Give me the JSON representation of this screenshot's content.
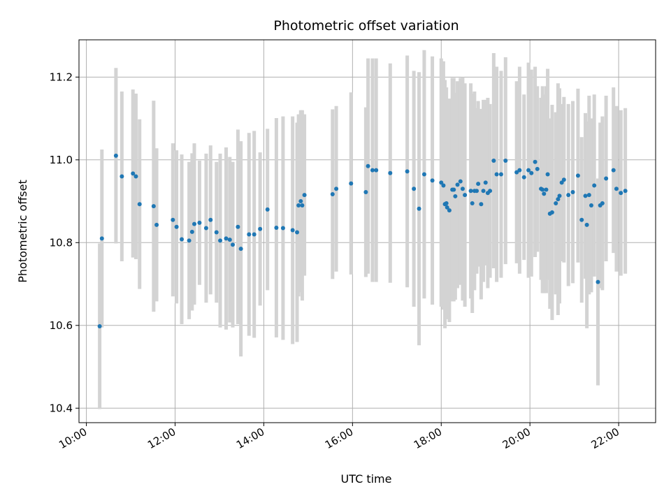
{
  "chart_data": {
    "type": "scatter",
    "title": "Photometric offset variation",
    "xlabel": "UTC time",
    "ylabel": "Photometric offset",
    "x_ticks": [
      "10:00",
      "12:00",
      "14:00",
      "16:00",
      "18:00",
      "20:00",
      "22:00"
    ],
    "y_ticks": [
      "10.4",
      "10.6",
      "10.8",
      "11.0",
      "11.2"
    ],
    "xlim": [
      "09:50",
      "22:50"
    ],
    "ylim": [
      10.365,
      11.29
    ],
    "grid": true,
    "colors": {
      "points": "#1f77b4",
      "errorbars": "#d3d3d3",
      "grid": "#b0b0b0"
    },
    "series": [
      {
        "x": [
          "10:18",
          "10:21",
          "10:40",
          "10:48",
          "11:03",
          "11:07",
          "11:12",
          "11:31",
          "11:35",
          "11:57",
          "12:02",
          "12:09",
          "12:19",
          "12:23",
          "12:26",
          "12:33",
          "12:42",
          "12:48",
          "12:56",
          "13:01",
          "13:09",
          "13:14",
          "13:18",
          "13:25",
          "13:29",
          "13:40",
          "13:47",
          "13:55",
          "14:05",
          "14:17",
          "14:26",
          "14:39",
          "14:45",
          "14:47",
          "14:50",
          "14:52",
          "14:55",
          "15:33",
          "15:38",
          "15:58",
          "16:18",
          "16:21",
          "16:27",
          "16:32",
          "16:51",
          "17:14",
          "17:23",
          "17:30",
          "17:37",
          "17:48",
          "18:00",
          "18:03",
          "18:05",
          "18:07",
          "18:08",
          "18:11",
          "18:15",
          "18:17",
          "18:19",
          "18:22",
          "18:26",
          "18:29",
          "18:32",
          "18:40",
          "18:42",
          "18:45",
          "18:48",
          "18:50",
          "18:54",
          "18:57",
          "19:00",
          "19:03",
          "19:06",
          "19:11",
          "19:15",
          "19:21",
          "19:27",
          "19:42",
          "19:46",
          "19:52",
          "19:58",
          "20:02",
          "20:07",
          "20:10",
          "20:15",
          "20:17",
          "20:19",
          "20:22",
          "20:24",
          "20:27",
          "20:30",
          "20:35",
          "20:38",
          "20:40",
          "20:43",
          "20:46",
          "20:52",
          "20:58",
          "21:05",
          "21:10",
          "21:15",
          "21:17",
          "21:20",
          "21:23",
          "21:27",
          "21:32",
          "21:35",
          "21:38",
          "21:43",
          "21:53",
          "21:57",
          "22:03",
          "22:09"
        ],
        "y": [
          10.598,
          10.81,
          11.01,
          10.96,
          10.967,
          10.96,
          10.893,
          10.888,
          10.843,
          10.855,
          10.838,
          10.808,
          10.805,
          10.826,
          10.845,
          10.848,
          10.835,
          10.855,
          10.825,
          10.805,
          10.81,
          10.807,
          10.795,
          10.838,
          10.785,
          10.82,
          10.82,
          10.833,
          10.88,
          10.836,
          10.835,
          10.83,
          10.825,
          10.89,
          10.9,
          10.89,
          10.915,
          10.917,
          10.93,
          10.943,
          10.922,
          10.985,
          10.975,
          10.975,
          10.968,
          10.972,
          10.93,
          10.882,
          10.965,
          10.95,
          10.945,
          10.938,
          10.893,
          10.895,
          10.885,
          10.878,
          10.928,
          10.928,
          10.912,
          10.94,
          10.948,
          10.93,
          10.915,
          10.925,
          10.895,
          10.925,
          10.925,
          10.942,
          10.893,
          10.925,
          10.945,
          10.92,
          10.925,
          10.998,
          10.965,
          10.965,
          10.998,
          10.97,
          10.975,
          10.958,
          10.975,
          10.968,
          10.995,
          10.978,
          10.93,
          10.928,
          10.918,
          10.928,
          10.965,
          10.87,
          10.873,
          10.895,
          10.905,
          10.913,
          10.945,
          10.952,
          10.915,
          10.922,
          10.962,
          10.855,
          10.913,
          10.843,
          10.915,
          10.89,
          10.938,
          10.705,
          10.89,
          10.895,
          10.955,
          10.975,
          10.93,
          10.92,
          10.925
        ],
        "yerr": [
          0.2,
          0.215,
          0.212,
          0.205,
          0.203,
          0.2,
          0.205,
          0.255,
          0.185,
          0.185,
          0.185,
          0.205,
          0.19,
          0.19,
          0.195,
          0.15,
          0.18,
          0.18,
          0.17,
          0.21,
          0.22,
          0.2,
          0.2,
          0.235,
          0.26,
          0.245,
          0.25,
          0.185,
          0.195,
          0.265,
          0.27,
          0.275,
          0.265,
          0.22,
          0.22,
          0.23,
          0.195,
          0.205,
          0.2,
          0.22,
          0.205,
          0.26,
          0.27,
          0.27,
          0.265,
          0.28,
          0.285,
          0.33,
          0.3,
          0.3,
          0.3,
          0.3,
          0.3,
          0.28,
          0.26,
          0.27,
          0.27,
          0.27,
          0.25,
          0.25,
          0.25,
          0.27,
          0.27,
          0.26,
          0.265,
          0.24,
          0.2,
          0.2,
          0.23,
          0.22,
          0.2,
          0.23,
          0.21,
          0.26,
          0.26,
          0.25,
          0.25,
          0.22,
          0.25,
          0.2,
          0.26,
          0.25,
          0.23,
          0.2,
          0.22,
          0.25,
          0.24,
          0.25,
          0.255,
          0.23,
          0.26,
          0.22,
          0.28,
          0.26,
          0.19,
          0.2,
          0.22,
          0.22,
          0.21,
          0.2,
          0.2,
          0.25,
          0.24,
          0.21,
          0.22,
          0.25,
          0.2,
          0.21,
          0.2,
          0.2,
          0.2,
          0.2,
          0.2
        ]
      }
    ]
  }
}
